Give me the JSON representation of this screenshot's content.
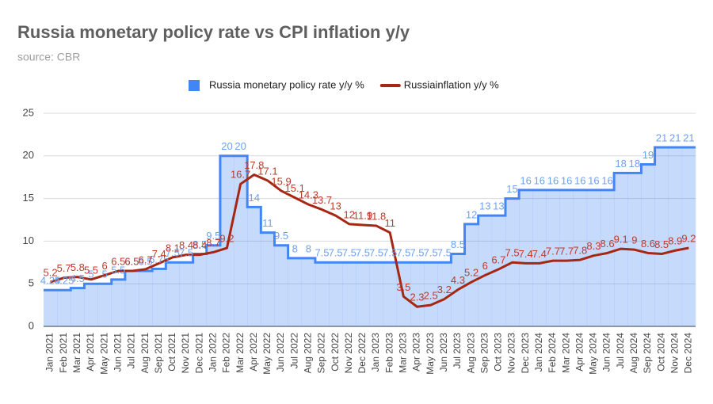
{
  "chart_data": {
    "type": "stepped-area-line",
    "title": "Russia monetary policy rate vs CPI inflation y/y",
    "subtitle": "source: CBR",
    "categories": [
      "Jan 2021",
      "Feb 2021",
      "Mar 2021",
      "Apr 2021",
      "May 2021",
      "Jun 2021",
      "Jul 2021",
      "Aug 2021",
      "Sep 2021",
      "Oct 2021",
      "Nov 2021",
      "Dec 2021",
      "Jan 2022",
      "Feb 2022",
      "Mar 2022",
      "Apr 2022",
      "May 2022",
      "Jun 2022",
      "Jul 2022",
      "Aug 2022",
      "Sep 2022",
      "Oct 2022",
      "Nov 2022",
      "Dec 2022",
      "Jan 2023",
      "Feb 2023",
      "Mar 2023",
      "Apr 2023",
      "May 2023",
      "Jun 2023",
      "Jul 2023",
      "Aug 2023",
      "Sep 2023",
      "Oct 2023",
      "Nov 2023",
      "Dec 2023",
      "Jan 2024",
      "Feb 2024",
      "Mar 2024",
      "Apr 2024",
      "May 2024",
      "Jun 2024",
      "Jul 2024",
      "Aug 2024",
      "Sep 2024",
      "Oct 2024",
      "Nov 2024",
      "Dec 2024"
    ],
    "series": [
      {
        "name": "Russia monetary policy rate y/y %",
        "color": "#4285f4",
        "kind": "stepped-area",
        "values": [
          4.25,
          4.25,
          4.5,
          5,
          5,
          5.5,
          6.5,
          6.5,
          6.75,
          7.5,
          7.5,
          8.5,
          9.5,
          20,
          20,
          14,
          11,
          9.5,
          8,
          8,
          7.5,
          7.5,
          7.5,
          7.5,
          7.5,
          7.5,
          7.5,
          7.5,
          7.5,
          7.5,
          8.5,
          12,
          13,
          13,
          15,
          16,
          16,
          16,
          16,
          16,
          16,
          16,
          18,
          18,
          19,
          21,
          21,
          21
        ]
      },
      {
        "name": "Russiainflation y/y %",
        "color": "#a52714",
        "kind": "line",
        "values": [
          5.2,
          5.7,
          5.8,
          5.5,
          6,
          6.5,
          6.5,
          6.7,
          7.4,
          8.1,
          8.4,
          8.4,
          8.7,
          9.2,
          16.7,
          17.8,
          17.1,
          15.9,
          15.1,
          14.3,
          13.7,
          13,
          12,
          11.9,
          11.8,
          11,
          3.5,
          2.3,
          2.5,
          3.2,
          4.3,
          5.2,
          6,
          6.7,
          7.5,
          7.4,
          7.4,
          7.7,
          7.7,
          7.8,
          8.3,
          8.6,
          9.1,
          9,
          8.6,
          8.5,
          8.9,
          9.2
        ]
      }
    ],
    "ylim": [
      0,
      25
    ],
    "yticks": [
      0,
      5,
      10,
      15,
      20,
      25
    ],
    "grid": true,
    "legend": "top"
  }
}
